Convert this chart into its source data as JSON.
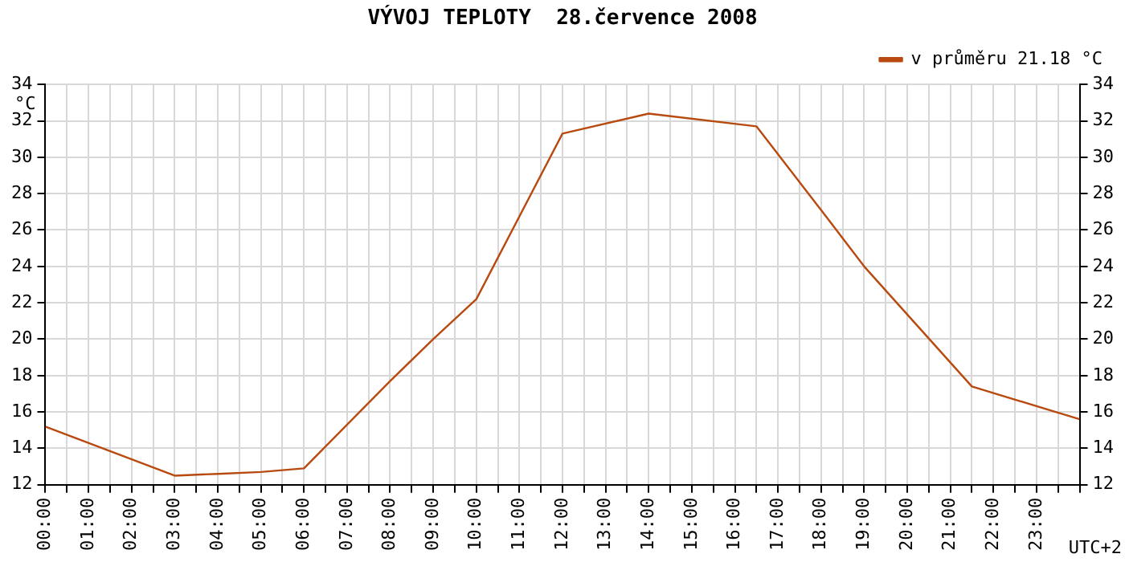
{
  "chart_data": {
    "type": "line",
    "title": "VÝVOJ TEPLOTY  28.července 2008",
    "ylabel": "°C",
    "xlabel": "UTC+2",
    "x": [
      0,
      3,
      4,
      5,
      6,
      8,
      9,
      10,
      12,
      14,
      16.5,
      18,
      19,
      21.5,
      24
    ],
    "series": [
      {
        "name": "v průměru 21.18 °C",
        "color": "#b84a10",
        "values": [
          15.2,
          12.5,
          12.6,
          12.7,
          12.9,
          17.7,
          20,
          22.2,
          31.3,
          32.4,
          31.7,
          27.1,
          24,
          17.4,
          15.6
        ]
      }
    ],
    "xlim": [
      0,
      24
    ],
    "xticks": [
      {
        "value": 0,
        "label": "00:00"
      },
      {
        "value": 0.5,
        "label": null
      },
      {
        "value": 1,
        "label": "01:00"
      },
      {
        "value": 1.5,
        "label": null
      },
      {
        "value": 2,
        "label": "02:00"
      },
      {
        "value": 2.5,
        "label": null
      },
      {
        "value": 3,
        "label": "03:00"
      },
      {
        "value": 3.5,
        "label": null
      },
      {
        "value": 4,
        "label": "04:00"
      },
      {
        "value": 4.5,
        "label": null
      },
      {
        "value": 5,
        "label": "05:00"
      },
      {
        "value": 5.5,
        "label": null
      },
      {
        "value": 6,
        "label": "06:00"
      },
      {
        "value": 6.5,
        "label": null
      },
      {
        "value": 7,
        "label": "07:00"
      },
      {
        "value": 7.5,
        "label": null
      },
      {
        "value": 8,
        "label": "08:00"
      },
      {
        "value": 8.5,
        "label": null
      },
      {
        "value": 9,
        "label": "09:00"
      },
      {
        "value": 9.5,
        "label": null
      },
      {
        "value": 10,
        "label": "10:00"
      },
      {
        "value": 10.5,
        "label": null
      },
      {
        "value": 11,
        "label": "11:00"
      },
      {
        "value": 11.5,
        "label": null
      },
      {
        "value": 12,
        "label": "12:00"
      },
      {
        "value": 12.5,
        "label": null
      },
      {
        "value": 13,
        "label": "13:00"
      },
      {
        "value": 13.5,
        "label": null
      },
      {
        "value": 14,
        "label": "14:00"
      },
      {
        "value": 14.5,
        "label": null
      },
      {
        "value": 15,
        "label": "15:00"
      },
      {
        "value": 15.5,
        "label": null
      },
      {
        "value": 16,
        "label": "16:00"
      },
      {
        "value": 16.5,
        "label": null
      },
      {
        "value": 17,
        "label": "17:00"
      },
      {
        "value": 17.5,
        "label": null
      },
      {
        "value": 18,
        "label": "18:00"
      },
      {
        "value": 18.5,
        "label": null
      },
      {
        "value": 19,
        "label": "19:00"
      },
      {
        "value": 19.5,
        "label": null
      },
      {
        "value": 20,
        "label": "20:00"
      },
      {
        "value": 20.5,
        "label": null
      },
      {
        "value": 21,
        "label": "21:00"
      },
      {
        "value": 21.5,
        "label": null
      },
      {
        "value": 22,
        "label": "22:00"
      },
      {
        "value": 22.5,
        "label": null
      },
      {
        "value": 23,
        "label": "23:00"
      },
      {
        "value": 23.5,
        "label": null
      },
      {
        "value": 24,
        "label": null
      }
    ],
    "ylim": [
      12,
      34
    ],
    "yticks": [
      12,
      14,
      16,
      18,
      20,
      22,
      24,
      26,
      28,
      30,
      32,
      34
    ],
    "y2lim": [
      12,
      34
    ],
    "y2ticks": [
      12,
      14,
      16,
      18,
      20,
      22,
      24,
      26,
      28,
      30,
      32,
      34
    ],
    "grid": true,
    "legend": "top right",
    "marker": "none",
    "line_style": "solid"
  }
}
